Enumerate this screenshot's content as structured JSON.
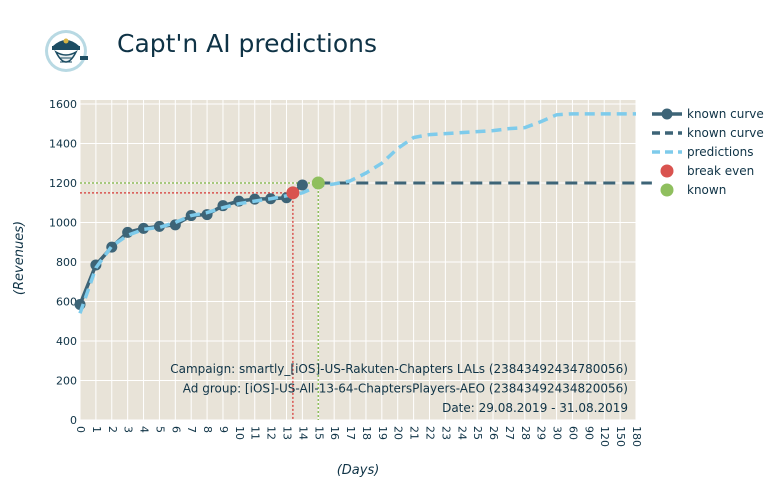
{
  "header": {
    "title": "Capt'n AI predictions",
    "logo_icon": "captain-logo-icon"
  },
  "chart_data": {
    "type": "line",
    "xlabel": "(Days)",
    "ylabel": "(Revenues)",
    "categories": [
      "0",
      "1",
      "2",
      "3",
      "4",
      "5",
      "6",
      "7",
      "8",
      "9",
      "10",
      "11",
      "12",
      "13",
      "14",
      "15",
      "16",
      "17",
      "18",
      "19",
      "20",
      "21",
      "22",
      "23",
      "24",
      "25",
      "26",
      "27",
      "28",
      "29",
      "30",
      "60",
      "90",
      "120",
      "150",
      "180"
    ],
    "y_ticks": [
      0,
      200,
      400,
      600,
      800,
      1000,
      1200,
      1400,
      1600
    ],
    "ylim": [
      0,
      1620
    ],
    "grid": true,
    "background": "#e8e3d8",
    "legend_position": "right",
    "series": [
      {
        "name": "known curve",
        "style": "solid-markers",
        "color": "#3d6477",
        "points": [
          [
            0,
            585
          ],
          [
            1,
            785
          ],
          [
            2,
            875
          ],
          [
            3,
            950
          ],
          [
            4,
            970
          ],
          [
            5,
            980
          ],
          [
            6,
            988
          ],
          [
            7,
            1035
          ],
          [
            8,
            1040
          ],
          [
            9,
            1085
          ],
          [
            10,
            1108
          ],
          [
            11,
            1118
          ],
          [
            12,
            1120
          ],
          [
            13,
            1125
          ],
          [
            14,
            1190
          ]
        ]
      },
      {
        "name": "known curve",
        "style": "dashed",
        "color": "#3d6477",
        "points": [
          [
            15,
            1200
          ],
          [
            36,
            1200
          ]
        ]
      },
      {
        "name": "predictions",
        "style": "dashed",
        "color": "#7ecbeb",
        "points": [
          [
            0,
            540
          ],
          [
            1,
            770
          ],
          [
            2,
            880
          ],
          [
            3,
            935
          ],
          [
            4,
            965
          ],
          [
            5,
            975
          ],
          [
            6,
            1000
          ],
          [
            7,
            1035
          ],
          [
            8,
            1050
          ],
          [
            9,
            1075
          ],
          [
            10,
            1095
          ],
          [
            11,
            1108
          ],
          [
            12,
            1120
          ],
          [
            13,
            1135
          ],
          [
            14,
            1150
          ],
          [
            15,
            1185
          ],
          [
            16,
            1195
          ],
          [
            17,
            1210
          ],
          [
            18,
            1250
          ],
          [
            19,
            1300
          ],
          [
            20,
            1375
          ],
          [
            21,
            1430
          ],
          [
            22,
            1445
          ],
          [
            23,
            1450
          ],
          [
            24,
            1455
          ],
          [
            25,
            1460
          ],
          [
            26,
            1465
          ],
          [
            27,
            1475
          ],
          [
            28,
            1480
          ],
          [
            29,
            1510
          ],
          [
            30,
            1545
          ],
          [
            31,
            1550
          ],
          [
            32,
            1550
          ],
          [
            33,
            1550
          ],
          [
            34,
            1550
          ],
          [
            35,
            1550
          ]
        ]
      }
    ],
    "markers": [
      {
        "name": "break even",
        "color": "#d9534f",
        "x": 13.4,
        "y": 1150,
        "line_style": "dotted"
      },
      {
        "name": "known",
        "color": "#8fbf5e",
        "x": 15,
        "y": 1200,
        "line_style": "dotted"
      }
    ],
    "annotations": [
      "Campaign: smartly_[iOS]-US-Rakuten-Chapters LALs (23843492434780056)",
      "Ad group: [iOS]-US-All-13-64-ChaptersPlayers-AEO (23843492434820056)",
      "Date: 29.08.2019 - 31.08.2019"
    ],
    "legend": [
      {
        "label": "known curve",
        "kind": "line-marker",
        "color": "#3d6477"
      },
      {
        "label": "known curve",
        "kind": "dashed",
        "color": "#3d6477"
      },
      {
        "label": "predictions",
        "kind": "dashed",
        "color": "#7ecbeb"
      },
      {
        "label": "break even",
        "kind": "dot",
        "color": "#d9534f"
      },
      {
        "label": "known",
        "kind": "dot",
        "color": "#8fbf5e"
      }
    ]
  }
}
